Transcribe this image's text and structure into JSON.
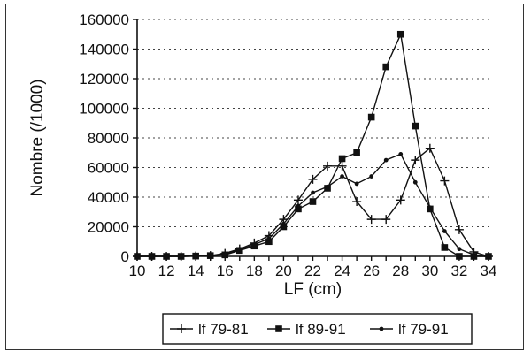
{
  "chart_data": {
    "type": "line",
    "title": "",
    "xlabel": "LF (cm)",
    "ylabel": "Nombre (/1000)",
    "xlim": [
      10,
      34
    ],
    "ylim": [
      0,
      160000
    ],
    "x_ticks": [
      10,
      12,
      14,
      16,
      18,
      20,
      22,
      24,
      26,
      28,
      30,
      32,
      34
    ],
    "y_ticks": [
      0,
      20000,
      40000,
      60000,
      80000,
      100000,
      120000,
      140000,
      160000
    ],
    "x_tick_labels": [
      "10",
      "12",
      "14",
      "16",
      "18",
      "20",
      "22",
      "24",
      "26",
      "28",
      "30",
      "32",
      "34"
    ],
    "y_tick_labels": [
      "0",
      "20000",
      "40000",
      "60000",
      "80000",
      "100000",
      "120000",
      "140000",
      "160000"
    ],
    "grid": "horizontal dotted",
    "legend_position": "bottom",
    "x": [
      10,
      11,
      12,
      13,
      14,
      15,
      16,
      17,
      18,
      19,
      20,
      21,
      22,
      23,
      24,
      25,
      26,
      27,
      28,
      29,
      30,
      31,
      32,
      33,
      34
    ],
    "series": [
      {
        "name": "lf 79-81",
        "marker": "plus",
        "values": [
          0,
          0,
          0,
          0,
          200,
          500,
          2000,
          5000,
          9000,
          14000,
          25000,
          38000,
          52000,
          61000,
          61000,
          37000,
          25000,
          25000,
          38000,
          65000,
          73000,
          51000,
          18000,
          3000,
          0
        ]
      },
      {
        "name": "lf 89-91",
        "marker": "square",
        "values": [
          0,
          0,
          0,
          0,
          200,
          500,
          1000,
          4000,
          7000,
          10000,
          20000,
          32000,
          37000,
          46000,
          66000,
          70000,
          94000,
          128000,
          150000,
          88000,
          32000,
          6000,
          0,
          0,
          0
        ]
      },
      {
        "name": "lf 79-91",
        "marker": "dot",
        "values": [
          0,
          0,
          0,
          0,
          200,
          500,
          1500,
          4500,
          8000,
          12000,
          22000,
          34000,
          43000,
          47000,
          54000,
          49000,
          54000,
          65000,
          69000,
          50000,
          33000,
          17000,
          5000,
          1000,
          0
        ]
      }
    ]
  }
}
